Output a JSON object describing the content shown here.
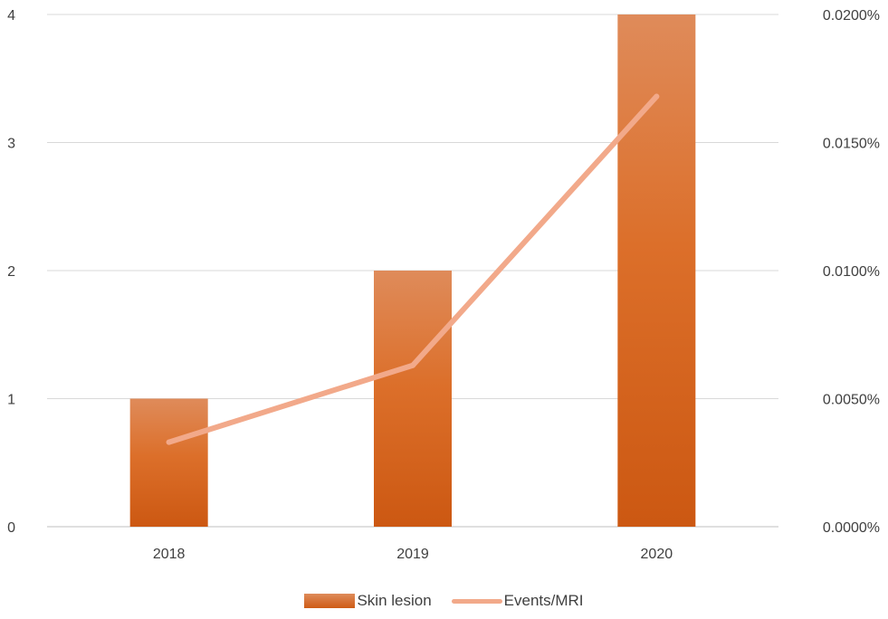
{
  "chart_data": {
    "type": "bar",
    "categories": [
      "2018",
      "2019",
      "2020"
    ],
    "series": [
      {
        "name": "Skin lesion",
        "type": "bar",
        "axis": "left",
        "values": [
          1,
          2,
          4
        ],
        "color": "#d2671f"
      },
      {
        "name": "Events/MRI",
        "type": "line",
        "axis": "right",
        "values": [
          0.0033,
          0.0063,
          0.0168
        ],
        "color": "#f2a98a"
      }
    ],
    "y_left": {
      "ylim": [
        0,
        4
      ],
      "ticks": [
        "0",
        "1",
        "2",
        "3",
        "4"
      ]
    },
    "y_right": {
      "ylim": [
        0,
        0.02
      ],
      "ticks": [
        "0.0000%",
        "0.0050%",
        "0.0100%",
        "0.0150%",
        "0.0200%"
      ]
    },
    "grid": true,
    "legend_position": "bottom"
  }
}
